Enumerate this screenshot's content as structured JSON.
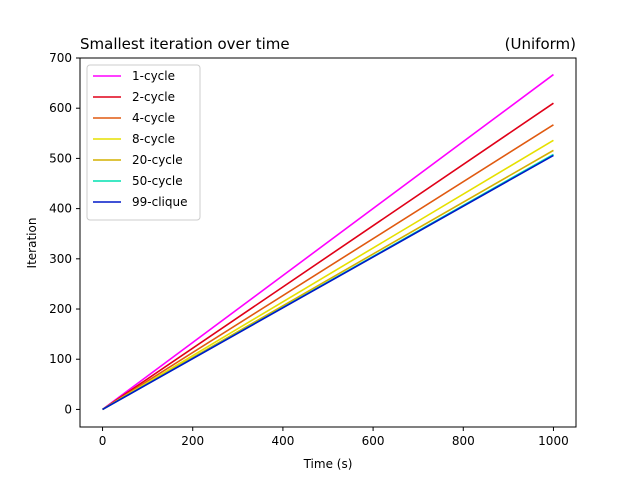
{
  "chart_data": {
    "type": "line",
    "title": "Smallest iteration over time",
    "title_right": "(Uniform)",
    "xlabel": "Time (s)",
    "ylabel": "Iteration",
    "xlim": [
      -50,
      1050
    ],
    "ylim": [
      -35,
      700
    ],
    "xticks": [
      0,
      200,
      400,
      600,
      800,
      1000
    ],
    "yticks": [
      0,
      100,
      200,
      300,
      400,
      500,
      600,
      700
    ],
    "grid": false,
    "legend_position": "top-left",
    "series": [
      {
        "name": "1-cycle",
        "color": "#ff00ff",
        "x": [
          0,
          1000
        ],
        "y": [
          0,
          667
        ]
      },
      {
        "name": "2-cycle",
        "color": "#e00018",
        "x": [
          0,
          1000
        ],
        "y": [
          0,
          610
        ]
      },
      {
        "name": "4-cycle",
        "color": "#e05a10",
        "x": [
          0,
          1000
        ],
        "y": [
          0,
          567
        ]
      },
      {
        "name": "8-cycle",
        "color": "#e6e000",
        "x": [
          0,
          1000
        ],
        "y": [
          0,
          536
        ]
      },
      {
        "name": "20-cycle",
        "color": "#d4b000",
        "x": [
          0,
          1000
        ],
        "y": [
          0,
          516
        ]
      },
      {
        "name": "50-cycle",
        "color": "#00e0b0",
        "x": [
          0,
          1000
        ],
        "y": [
          0,
          508
        ]
      },
      {
        "name": "99-clique",
        "color": "#0018c8",
        "x": [
          0,
          1000
        ],
        "y": [
          0,
          506
        ]
      }
    ]
  }
}
